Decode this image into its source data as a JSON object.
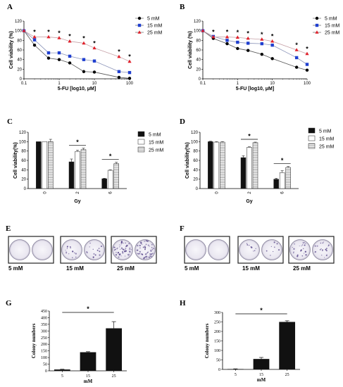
{
  "panel_labels": [
    "A",
    "B",
    "C",
    "D",
    "E",
    "F",
    "G",
    "H"
  ],
  "colors": {
    "s5": "#000000",
    "s15": "#1f3fd0",
    "s25": "#e0202a",
    "dish_bg": "#f1eff5",
    "stain": "#5b4a8c"
  },
  "colony_labels": {
    "E": [
      "5 mM",
      "15 mM",
      "25 mM"
    ],
    "F": [
      "5 mM",
      "15 mM",
      "25 mM"
    ]
  },
  "chart_data": [
    {
      "panel": "A",
      "type": "line",
      "x_scale": "log",
      "xlim": [
        0.1,
        100
      ],
      "xticks": [
        "0.1",
        "1",
        "10",
        "100"
      ],
      "ylim": [
        0,
        120
      ],
      "yticks": [
        "0",
        "20",
        "40",
        "60",
        "80",
        "100",
        "120"
      ],
      "xlabel": "5-FU [log10, μM]",
      "ylabel": "Cell viability (%)",
      "legend_position": "top-right",
      "x": [
        0.1,
        0.2,
        0.5,
        1,
        2,
        5,
        10,
        50,
        100
      ],
      "series": [
        {
          "name": "5 mM",
          "marker": "circle",
          "values": [
            100,
            70,
            43,
            40,
            33,
            15,
            14,
            3,
            1
          ]
        },
        {
          "name": "15 mM",
          "marker": "square",
          "values": [
            100,
            81,
            54,
            54,
            47,
            40,
            37,
            15,
            13
          ]
        },
        {
          "name": "25 mM",
          "marker": "triangle",
          "values": [
            100,
            87,
            87,
            85,
            78,
            74,
            64,
            46,
            36
          ]
        }
      ],
      "significance": [
        "*",
        "*",
        "*",
        "*",
        "*",
        "*",
        "*",
        "*"
      ]
    },
    {
      "panel": "B",
      "type": "line",
      "x_scale": "log",
      "xlim": [
        0.1,
        100
      ],
      "xticks": [
        "0.1",
        "1",
        "10",
        "100"
      ],
      "ylim": [
        0,
        120
      ],
      "yticks": [
        "0",
        "20",
        "40",
        "60",
        "80",
        "100",
        "120"
      ],
      "xlabel": "5-FU [log10, μM]",
      "ylabel": "Cell viability (%)",
      "legend_position": "top-right",
      "x": [
        0.1,
        0.2,
        0.5,
        1,
        2,
        5,
        10,
        50,
        100
      ],
      "series": [
        {
          "name": "5 mM",
          "marker": "circle",
          "values": [
            100,
            84,
            73,
            63,
            59,
            51,
            42,
            24,
            18
          ]
        },
        {
          "name": "15 mM",
          "marker": "square",
          "values": [
            100,
            88,
            80,
            76,
            74,
            73,
            70,
            44,
            30
          ]
        },
        {
          "name": "25 mM",
          "marker": "triangle",
          "values": [
            100,
            87,
            87,
            86,
            84,
            82,
            78,
            60,
            52
          ]
        }
      ],
      "significance": [
        "*",
        "*",
        "*",
        "*",
        "*",
        "*",
        "*",
        "*"
      ]
    },
    {
      "panel": "C",
      "type": "bar",
      "categories": [
        "0",
        "2",
        "6"
      ],
      "ylim": [
        0,
        120
      ],
      "yticks": [
        "0",
        "20",
        "40",
        "60",
        "80",
        "100",
        "120"
      ],
      "xlabel": "Gy",
      "ylabel": "Cell viability(%)",
      "legend_position": "top-right",
      "series": [
        {
          "name": "5 mM",
          "fill": "solid",
          "values": [
            100,
            57,
            21
          ],
          "errors": [
            0,
            6,
            1
          ]
        },
        {
          "name": "15 mM",
          "fill": "white",
          "values": [
            100,
            79,
            39
          ],
          "errors": [
            0,
            3,
            1
          ]
        },
        {
          "name": "25 mM",
          "fill": "striped",
          "values": [
            100,
            83,
            53
          ],
          "errors": [
            5,
            3,
            3
          ]
        }
      ],
      "significance": [
        "*",
        "*"
      ]
    },
    {
      "panel": "D",
      "type": "bar",
      "categories": [
        "0",
        "2",
        "6"
      ],
      "ylim": [
        0,
        120
      ],
      "yticks": [
        "0",
        "20",
        "40",
        "60",
        "80",
        "100",
        "120"
      ],
      "xlabel": "Gy",
      "ylabel": "Cell viability(%)",
      "legend_position": "top-right",
      "series": [
        {
          "name": "5 mM",
          "fill": "solid",
          "values": [
            100,
            66,
            20
          ],
          "errors": [
            1,
            4,
            2
          ]
        },
        {
          "name": "15 mM",
          "fill": "white",
          "values": [
            99,
            88,
            34
          ],
          "errors": [
            1,
            1,
            4
          ]
        },
        {
          "name": "25 mM",
          "fill": "striped",
          "values": [
            99,
            98,
            45
          ],
          "errors": [
            1,
            1,
            2
          ]
        }
      ],
      "significance": [
        "*",
        "*"
      ]
    },
    {
      "panel": "G",
      "type": "bar",
      "categories": [
        "5",
        "15",
        "25"
      ],
      "values": [
        10,
        140,
        320
      ],
      "errors": [
        2,
        4,
        50
      ],
      "ylim": [
        0,
        450
      ],
      "yticks": [
        "0",
        "50",
        "100",
        "150",
        "200",
        "250",
        "300",
        "350",
        "400",
        "450"
      ],
      "xlabel": "mM",
      "ylabel": "Colony numbers",
      "significance": [
        "*"
      ]
    },
    {
      "panel": "H",
      "type": "bar",
      "categories": [
        "5",
        "15",
        "25"
      ],
      "values": [
        2,
        55,
        250
      ],
      "errors": [
        1,
        8,
        6
      ],
      "ylim": [
        0,
        300
      ],
      "yticks": [
        "0",
        "50",
        "100",
        "150",
        "200",
        "250",
        "300"
      ],
      "xlabel": "mM",
      "ylabel": "Colony numbers",
      "significance": [
        "*"
      ]
    }
  ]
}
